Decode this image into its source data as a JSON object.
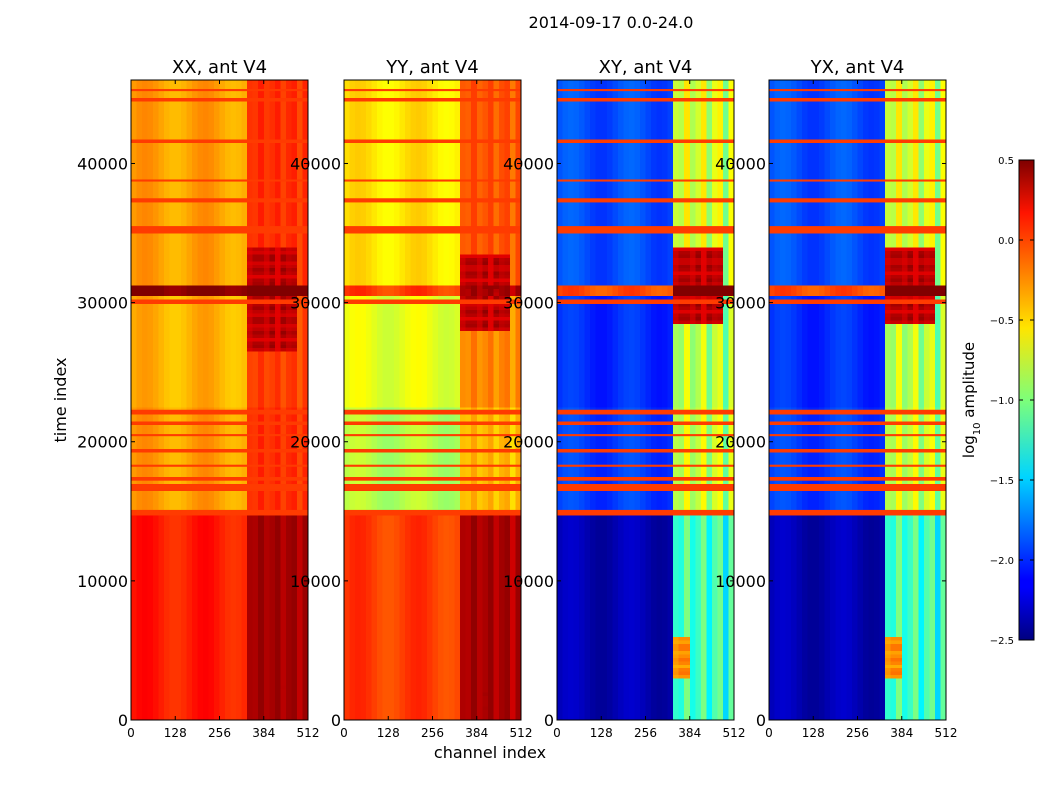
{
  "chart_data": {
    "type": "heatmap",
    "title": "2014-09-17 0.0-24.0",
    "xlabel": "channel index",
    "ylabel": "time index",
    "xlim": [
      0,
      512
    ],
    "ylim": [
      0,
      46000
    ],
    "x_ticks": [
      0,
      128,
      256,
      384,
      512
    ],
    "y_ticks": [
      0,
      10000,
      20000,
      30000,
      40000
    ],
    "colorbar": {
      "label_main": "log",
      "label_sub": "10",
      "label_tail": " amplitude",
      "range": [
        -2.5,
        0.5
      ],
      "ticks": [
        0.5,
        0.0,
        -0.5,
        -1.0,
        -1.5,
        -2.0,
        -2.5
      ],
      "tick_labels": [
        "0.5",
        "0.0",
        "−0.5",
        "−1.0",
        "−1.5",
        "−2.0",
        "−2.5"
      ]
    },
    "colormap": "jet",
    "panels": [
      {
        "title": "XX, ant V4",
        "segments": [
          {
            "t0": 0,
            "t1": 14800,
            "level": 0.05
          },
          {
            "t0": 14800,
            "t1": 22400,
            "level": -0.35
          },
          {
            "t0": 22400,
            "t1": 30500,
            "level": -0.4
          },
          {
            "t0": 30500,
            "t1": 31200,
            "level": 0.5
          },
          {
            "t0": 31200,
            "t1": 46000,
            "level": -0.35
          }
        ],
        "rfi_band": {
          "c0": 330,
          "c1": 512,
          "boost": 0.4
        },
        "hot_regions": [
          {
            "c0": 330,
            "c1": 480,
            "t0": 26500,
            "t1": 34000,
            "level": 0.45
          },
          {
            "c0": 330,
            "c1": 470,
            "t0": 1000,
            "t1": 4000,
            "level": 0.35
          }
        ]
      },
      {
        "title": "YY, ant V4",
        "segments": [
          {
            "t0": 0,
            "t1": 14800,
            "level": -0.05
          },
          {
            "t0": 14800,
            "t1": 22400,
            "level": -0.85
          },
          {
            "t0": 22400,
            "t1": 30500,
            "level": -0.7
          },
          {
            "t0": 30500,
            "t1": 31200,
            "level": -0.05
          },
          {
            "t0": 31200,
            "t1": 46000,
            "level": -0.55
          }
        ],
        "rfi_band": {
          "c0": 330,
          "c1": 512,
          "boost": 0.5
        },
        "hot_regions": [
          {
            "c0": 330,
            "c1": 480,
            "t0": 28000,
            "t1": 33500,
            "level": 0.45
          },
          {
            "c0": 330,
            "c1": 440,
            "t0": 500,
            "t1": 3000,
            "level": 0.4
          }
        ]
      },
      {
        "title": "XY, ant V4",
        "segments": [
          {
            "t0": 0,
            "t1": 14800,
            "level": -2.35
          },
          {
            "t0": 14800,
            "t1": 22400,
            "level": -1.95
          },
          {
            "t0": 22400,
            "t1": 30500,
            "level": -2.0
          },
          {
            "t0": 30500,
            "t1": 31200,
            "level": -0.1
          },
          {
            "t0": 31200,
            "t1": 46000,
            "level": -1.9
          }
        ],
        "rfi_band": {
          "c0": 330,
          "c1": 512,
          "boost": 1.35
        },
        "hot_regions": [
          {
            "c0": 330,
            "c1": 480,
            "t0": 28500,
            "t1": 34000,
            "level": 0.45
          },
          {
            "c0": 330,
            "c1": 380,
            "t0": 3000,
            "t1": 6000,
            "level": -0.15
          }
        ]
      },
      {
        "title": "YX, ant V4",
        "segments": [
          {
            "t0": 0,
            "t1": 14800,
            "level": -2.35
          },
          {
            "t0": 14800,
            "t1": 22400,
            "level": -1.95
          },
          {
            "t0": 22400,
            "t1": 30500,
            "level": -2.0
          },
          {
            "t0": 30500,
            "t1": 31200,
            "level": -0.1
          },
          {
            "t0": 31200,
            "t1": 46000,
            "level": -1.9
          }
        ],
        "rfi_band": {
          "c0": 330,
          "c1": 512,
          "boost": 1.35
        },
        "hot_regions": [
          {
            "c0": 330,
            "c1": 480,
            "t0": 28500,
            "t1": 34000,
            "level": 0.45
          },
          {
            "c0": 330,
            "c1": 380,
            "t0": 3000,
            "t1": 6000,
            "level": -0.15
          }
        ]
      }
    ],
    "flag_rows": [
      {
        "t0": 14700,
        "t1": 15100,
        "level": -0.05
      },
      {
        "t0": 16600,
        "t1": 16900,
        "level": -0.05
      },
      {
        "t0": 17200,
        "t1": 17400,
        "level": -0.05
      },
      {
        "t0": 18200,
        "t1": 18350,
        "level": -0.05
      },
      {
        "t0": 19300,
        "t1": 19450,
        "level": -0.05
      },
      {
        "t0": 20400,
        "t1": 20550,
        "level": -0.05
      },
      {
        "t0": 21300,
        "t1": 21450,
        "level": -0.05
      },
      {
        "t0": 22000,
        "t1": 22300,
        "level": -0.05
      },
      {
        "t0": 29900,
        "t1": 30150,
        "level": -0.05
      },
      {
        "t0": 35000,
        "t1": 35500,
        "level": -0.05
      },
      {
        "t0": 37200,
        "t1": 37500,
        "level": -0.05
      },
      {
        "t0": 38700,
        "t1": 38850,
        "level": -0.05
      },
      {
        "t0": 41500,
        "t1": 41700,
        "level": -0.05
      },
      {
        "t0": 44500,
        "t1": 44650,
        "level": -0.05
      },
      {
        "t0": 45200,
        "t1": 45350,
        "level": -0.05
      }
    ]
  }
}
